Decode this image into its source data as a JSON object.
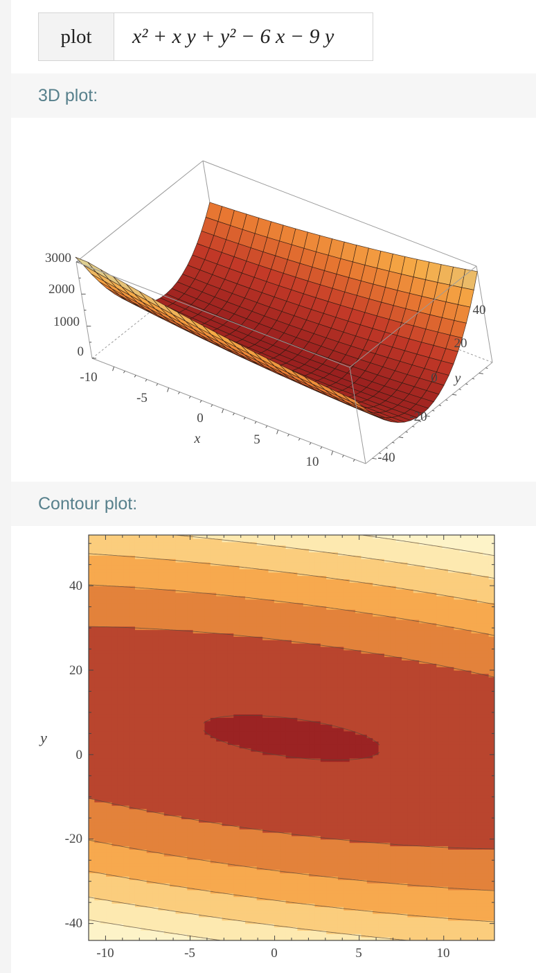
{
  "input": {
    "key": "plot",
    "expression": "x² + x y + y² − 6 x − 9 y"
  },
  "sections": {
    "plot3d_title": "3D plot:",
    "contour_title": "Contour plot:"
  },
  "colors": {
    "header_text": "#57808c",
    "accent_dark": "#9b2323",
    "accent_light": "#fdeebb"
  },
  "chart_data": [
    {
      "type": "surface",
      "function": "x² + x y + y² − 6 x − 9 y",
      "xlabel": "x",
      "ylabel": "y",
      "xlim": [
        -12,
        13
      ],
      "ylim": [
        -45,
        50
      ],
      "zlim": [
        0,
        3000
      ],
      "x_ticks": [
        "-10",
        "-5",
        "0",
        "5",
        "10"
      ],
      "y_ticks": [
        "-40",
        "-20",
        "0",
        "20",
        "40"
      ],
      "z_ticks": [
        "0",
        "1000",
        "2000",
        "3000"
      ]
    },
    {
      "type": "contour",
      "function": "x² + x y + y² − 6 x − 9 y",
      "xlabel": "",
      "ylabel": "y",
      "xlim": [
        -11,
        13
      ],
      "ylim": [
        -44,
        52
      ],
      "x_ticks": [
        "-10",
        "-5",
        "0",
        "5",
        "10"
      ],
      "y_ticks": [
        "-40",
        "-20",
        "0",
        "20",
        "40"
      ],
      "levels": [
        0,
        500,
        1000,
        1500,
        2000,
        2500,
        3000
      ],
      "fill_colors": [
        "#9b2323",
        "#b9452e",
        "#e3823b",
        "#f7a94e",
        "#fbcd7d",
        "#fde9b0",
        "#fdf3c8"
      ]
    }
  ]
}
